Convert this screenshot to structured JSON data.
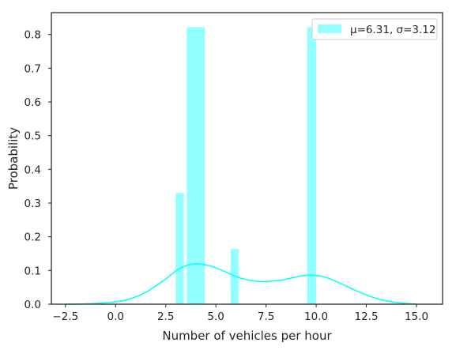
{
  "chart_data": {
    "type": "bar",
    "subtype": "histogram-with-kde",
    "title": "",
    "xlabel": "Number of vehicles per hour",
    "ylabel": "Probability",
    "xlim": [
      -3.2,
      16.3
    ],
    "ylim": [
      0,
      0.865
    ],
    "xticks": [
      -2.5,
      0.0,
      2.5,
      5.0,
      7.5,
      10.0,
      12.5,
      15.0
    ],
    "xtick_labels": [
      "−2.5",
      "0.0",
      "2.5",
      "5.0",
      "7.5",
      "10.0",
      "12.5",
      "15.0"
    ],
    "yticks": [
      0.0,
      0.1,
      0.2,
      0.3,
      0.4,
      0.5,
      0.6,
      0.7,
      0.8
    ],
    "ytick_labels": [
      "0.0",
      "0.1",
      "0.2",
      "0.3",
      "0.4",
      "0.5",
      "0.6",
      "0.7",
      "0.8"
    ],
    "grid": false,
    "legend_position": "top-right",
    "bars": [
      {
        "x0": 3.0,
        "x1": 3.41,
        "value": 0.33
      },
      {
        "x0": 3.55,
        "x1": 4.45,
        "value": 0.822
      },
      {
        "x0": 5.73,
        "x1": 6.14,
        "value": 0.164
      },
      {
        "x0": 9.55,
        "x1": 10.0,
        "value": 0.822
      }
    ],
    "kde": {
      "x": [
        -2.5,
        -1.5,
        -0.5,
        0.5,
        1.5,
        2.5,
        3.2,
        4.0,
        4.8,
        5.5,
        6.3,
        7.3,
        8.3,
        9.2,
        9.8,
        10.4,
        11.2,
        12.0,
        13.0,
        14.0,
        15.0
      ],
      "y": [
        0.0,
        0.001,
        0.004,
        0.012,
        0.035,
        0.075,
        0.106,
        0.12,
        0.112,
        0.095,
        0.076,
        0.067,
        0.072,
        0.083,
        0.086,
        0.081,
        0.062,
        0.04,
        0.017,
        0.005,
        0.0
      ]
    },
    "series": [
      {
        "name": "μ=6.31, σ=3.12",
        "color": "#00ffff"
      }
    ],
    "colors": {
      "bar_fill": "#00ffff",
      "bar_opacity": 0.42,
      "kde_line": "#00ffff",
      "axes_frame": "#262626",
      "text": "#262626"
    }
  }
}
